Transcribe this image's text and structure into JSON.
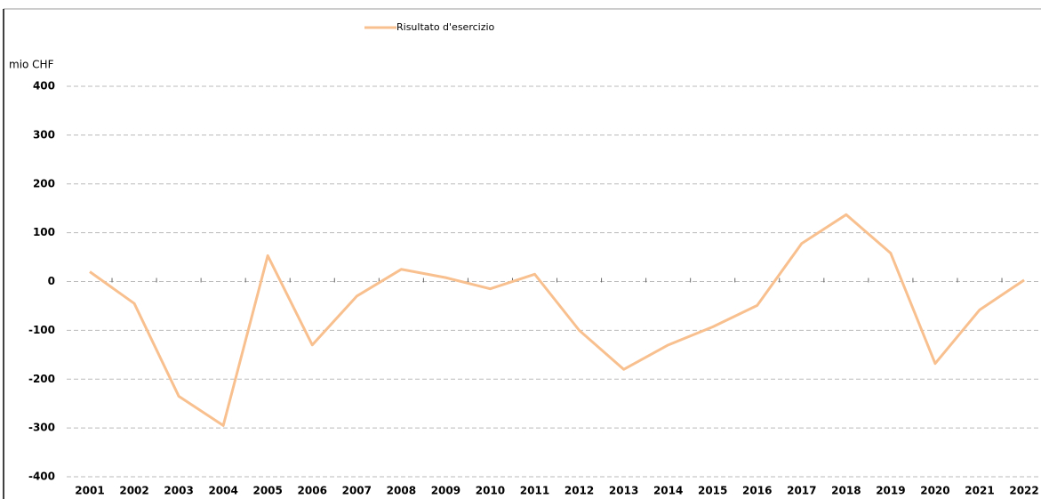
{
  "chart_data": {
    "type": "line",
    "y_axis_label": "mio CHF",
    "categories": [
      "2001",
      "2002",
      "2003",
      "2004",
      "2005",
      "2006",
      "2007",
      "2008",
      "2009",
      "2010",
      "2011",
      "2012",
      "2013",
      "2014",
      "2015",
      "2016",
      "2017",
      "2018",
      "2019",
      "2020",
      "2021",
      "2022"
    ],
    "series": [
      {
        "name": "Risultato d'esercizio",
        "color": "#f9c08f",
        "values": [
          20,
          -45,
          -235,
          -295,
          53,
          -130,
          -30,
          25,
          8,
          -15,
          15,
          -100,
          -180,
          -130,
          -93,
          -49,
          78,
          137,
          58,
          -168,
          -58,
          3
        ]
      }
    ],
    "ylim": [
      -400,
      400
    ],
    "yticks": [
      -400,
      -300,
      -200,
      -100,
      0,
      100,
      200,
      300,
      400
    ],
    "grid": true,
    "legend": "top"
  }
}
